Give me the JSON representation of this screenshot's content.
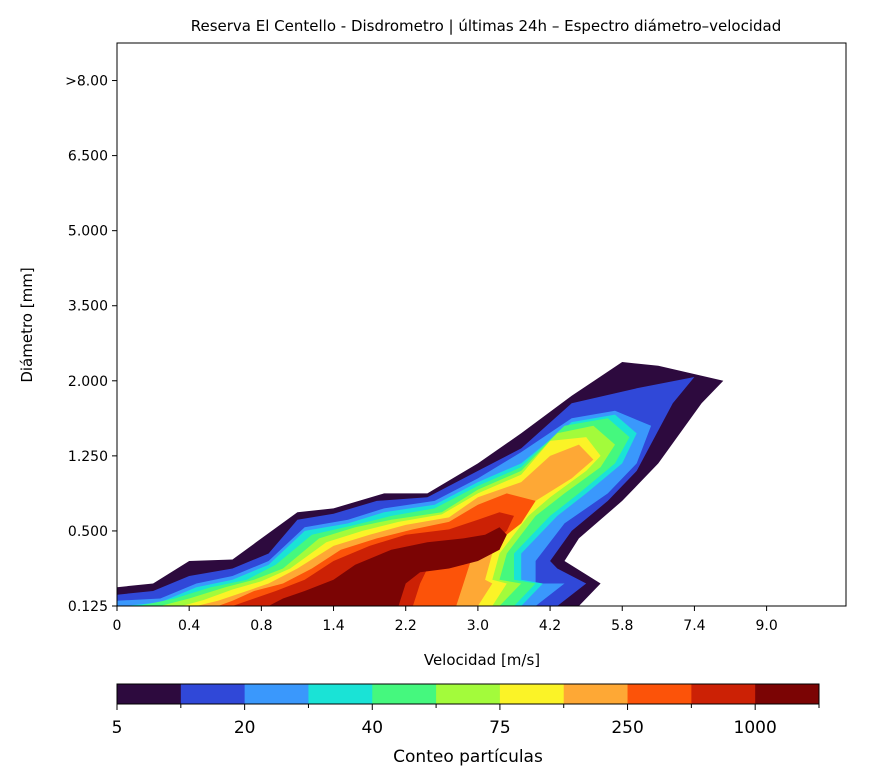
{
  "chart_data": {
    "type": "contour",
    "title": "Reserva El Centello - Disdrometro | últimas 24h – Espectro diámetro–velocidad",
    "xlabel": "Velocidad [m/s]",
    "ylabel": "Diámetro [mm]",
    "x_ticks": [
      "0",
      "0.4",
      "0.8",
      "1.4",
      "2.2",
      "3.0",
      "4.2",
      "5.8",
      "7.4",
      "9.0"
    ],
    "y_ticks": [
      "0.125",
      "0.500",
      "1.250",
      "2.000",
      "3.500",
      "5.000",
      "6.500",
      ">8.00"
    ],
    "x_range_bins": [
      0,
      10.1
    ],
    "y_range_bins": [
      0,
      7.5
    ],
    "grid": false,
    "colorbar": {
      "label": "Conteo partículas",
      "orientation": "horizontal",
      "position": "bottom",
      "tick_labels": [
        "5",
        "20",
        "40",
        "75",
        "250",
        "1000"
      ],
      "levels": 11,
      "colors": [
        "#2d0a3e",
        "#3048d8",
        "#3a98fc",
        "#1ae3d6",
        "#45f87e",
        "#a3fb3b",
        "#fbf327",
        "#fea835",
        "#fc5309",
        "#cc2105",
        "#7b0404"
      ]
    },
    "contour_levels": [
      {
        "level": 1,
        "color": "#2d0a3e",
        "polygon": [
          [
            0,
            0
          ],
          [
            0,
            0.25
          ],
          [
            0.5,
            0.3
          ],
          [
            1,
            0.6
          ],
          [
            1.6,
            0.62
          ],
          [
            2,
            0.9
          ],
          [
            2.5,
            1.25
          ],
          [
            3,
            1.3
          ],
          [
            3.7,
            1.5
          ],
          [
            4.3,
            1.5
          ],
          [
            5,
            1.9
          ],
          [
            5.6,
            2.3
          ],
          [
            6.3,
            2.8
          ],
          [
            7,
            3.25
          ],
          [
            7.5,
            3.2
          ],
          [
            8.4,
            3
          ],
          [
            8.1,
            2.7
          ],
          [
            7.5,
            1.9
          ],
          [
            7,
            1.4
          ],
          [
            6.4,
            0.9
          ],
          [
            6.2,
            0.6
          ],
          [
            6.7,
            0.3
          ],
          [
            6.4,
            0
          ]
        ]
      },
      {
        "level": 2,
        "color": "#3048d8",
        "polygon": [
          [
            0,
            0
          ],
          [
            0,
            0.15
          ],
          [
            0.5,
            0.2
          ],
          [
            1,
            0.4
          ],
          [
            1.6,
            0.5
          ],
          [
            2.1,
            0.7
          ],
          [
            2.5,
            1.15
          ],
          [
            3,
            1.23
          ],
          [
            3.6,
            1.4
          ],
          [
            4.3,
            1.45
          ],
          [
            5,
            1.8
          ],
          [
            5.6,
            2.1
          ],
          [
            6.3,
            2.7
          ],
          [
            7.2,
            2.9
          ],
          [
            8,
            3.05
          ],
          [
            7.7,
            2.7
          ],
          [
            7.2,
            1.8
          ],
          [
            6.8,
            1.4
          ],
          [
            6.3,
            1
          ],
          [
            6,
            0.6
          ],
          [
            6.1,
            0.5
          ],
          [
            6.5,
            0.3
          ],
          [
            6.1,
            0
          ]
        ]
      },
      {
        "level": 3,
        "color": "#3a98fc",
        "polygon": [
          [
            0,
            0
          ],
          [
            0,
            0.07
          ],
          [
            0.6,
            0.1
          ],
          [
            1.1,
            0.3
          ],
          [
            1.6,
            0.4
          ],
          [
            2.1,
            0.6
          ],
          [
            2.6,
            1.05
          ],
          [
            3.2,
            1.15
          ],
          [
            3.7,
            1.3
          ],
          [
            4.4,
            1.4
          ],
          [
            5,
            1.7
          ],
          [
            5.6,
            2.05
          ],
          [
            6.3,
            2.5
          ],
          [
            6.9,
            2.6
          ],
          [
            7.4,
            2.4
          ],
          [
            7.2,
            1.9
          ],
          [
            6.8,
            1.5
          ],
          [
            6.2,
            1.1
          ],
          [
            5.8,
            0.6
          ],
          [
            5.8,
            0.3
          ],
          [
            6.2,
            0.3
          ],
          [
            5.8,
            0
          ]
        ]
      },
      {
        "level": 4,
        "color": "#1ae3d6",
        "polygon": [
          [
            0.1,
            0
          ],
          [
            0.6,
            0.05
          ],
          [
            1.1,
            0.25
          ],
          [
            1.6,
            0.35
          ],
          [
            2.1,
            0.55
          ],
          [
            2.6,
            1.0
          ],
          [
            3.2,
            1.1
          ],
          [
            3.7,
            1.25
          ],
          [
            4.4,
            1.35
          ],
          [
            5,
            1.65
          ],
          [
            5.6,
            1.9
          ],
          [
            6.3,
            2.45
          ],
          [
            6.9,
            2.55
          ],
          [
            7.2,
            2.3
          ],
          [
            7,
            1.9
          ],
          [
            6.5,
            1.5
          ],
          [
            6.1,
            1.2
          ],
          [
            5.6,
            0.7
          ],
          [
            5.6,
            0.35
          ],
          [
            5.9,
            0.3
          ],
          [
            5.6,
            0
          ]
        ]
      },
      {
        "level": 5,
        "color": "#45f87e",
        "polygon": [
          [
            0.3,
            0
          ],
          [
            0.8,
            0.1
          ],
          [
            1.3,
            0.25
          ],
          [
            1.8,
            0.35
          ],
          [
            2.2,
            0.55
          ],
          [
            2.7,
            0.95
          ],
          [
            3.3,
            1.08
          ],
          [
            3.8,
            1.2
          ],
          [
            4.4,
            1.3
          ],
          [
            5,
            1.6
          ],
          [
            5.6,
            1.85
          ],
          [
            6.2,
            2.4
          ],
          [
            6.8,
            2.5
          ],
          [
            7.1,
            2.25
          ],
          [
            6.9,
            1.9
          ],
          [
            6.4,
            1.5
          ],
          [
            6,
            1.2
          ],
          [
            5.5,
            0.7
          ],
          [
            5.5,
            0.35
          ],
          [
            5.8,
            0.3
          ],
          [
            5.5,
            0
          ]
        ]
      },
      {
        "level": 6,
        "color": "#a3fb3b",
        "polygon": [
          [
            0.6,
            0
          ],
          [
            1,
            0.1
          ],
          [
            1.5,
            0.25
          ],
          [
            1.9,
            0.35
          ],
          [
            2.3,
            0.5
          ],
          [
            2.8,
            0.9
          ],
          [
            3.3,
            1.05
          ],
          [
            3.8,
            1.15
          ],
          [
            4.5,
            1.25
          ],
          [
            5,
            1.55
          ],
          [
            5.6,
            1.8
          ],
          [
            6.1,
            2.3
          ],
          [
            6.6,
            2.4
          ],
          [
            6.9,
            2.15
          ],
          [
            6.7,
            1.85
          ],
          [
            6.2,
            1.5
          ],
          [
            5.8,
            1.2
          ],
          [
            5.4,
            0.7
          ],
          [
            5.3,
            0.35
          ],
          [
            5.6,
            0.3
          ],
          [
            5.3,
            0
          ]
        ]
      },
      {
        "level": 7,
        "color": "#fbf327",
        "polygon": [
          [
            0.9,
            0
          ],
          [
            1.2,
            0.08
          ],
          [
            1.6,
            0.22
          ],
          [
            2,
            0.33
          ],
          [
            2.4,
            0.5
          ],
          [
            2.9,
            0.85
          ],
          [
            3.4,
            1.0
          ],
          [
            3.9,
            1.12
          ],
          [
            4.5,
            1.22
          ],
          [
            5,
            1.5
          ],
          [
            5.6,
            1.75
          ],
          [
            6,
            2.2
          ],
          [
            6.5,
            2.25
          ],
          [
            6.7,
            2.0
          ],
          [
            6.5,
            1.8
          ],
          [
            6,
            1.45
          ],
          [
            5.7,
            1.2
          ],
          [
            5.3,
            0.7
          ],
          [
            5.2,
            0.35
          ],
          [
            5.4,
            0.3
          ],
          [
            5.2,
            0
          ]
        ]
      },
      {
        "level": 8,
        "color": "#fea835",
        "polygon": [
          [
            1.1,
            0
          ],
          [
            1.4,
            0.07
          ],
          [
            1.8,
            0.2
          ],
          [
            2.1,
            0.3
          ],
          [
            2.5,
            0.5
          ],
          [
            3.0,
            0.8
          ],
          [
            3.5,
            0.95
          ],
          [
            4,
            1.08
          ],
          [
            4.6,
            1.18
          ],
          [
            5,
            1.45
          ],
          [
            5.6,
            1.65
          ],
          [
            6,
            2.0
          ],
          [
            6.4,
            2.15
          ],
          [
            6.6,
            1.95
          ],
          [
            6.3,
            1.7
          ],
          [
            5.8,
            1.4
          ],
          [
            5.5,
            1.1
          ],
          [
            5.2,
            0.7
          ],
          [
            5.1,
            0.35
          ],
          [
            5.2,
            0.3
          ],
          [
            5.0,
            0
          ]
        ]
      },
      {
        "level": 9,
        "color": "#fc5309",
        "polygon": [
          [
            1.4,
            0
          ],
          [
            1.6,
            0.07
          ],
          [
            1.9,
            0.2
          ],
          [
            2.3,
            0.3
          ],
          [
            2.7,
            0.5
          ],
          [
            3.1,
            0.75
          ],
          [
            3.6,
            0.9
          ],
          [
            4.1,
            1.02
          ],
          [
            4.6,
            1.12
          ],
          [
            5.0,
            1.35
          ],
          [
            5.4,
            1.5
          ],
          [
            5.8,
            1.4
          ],
          [
            5.6,
            1.1
          ],
          [
            5.2,
            0.8
          ],
          [
            4.9,
            0.6
          ],
          [
            4.8,
            0.3
          ],
          [
            4.7,
            0
          ]
        ]
      },
      {
        "level": 10,
        "color": "#cc2105",
        "polygon": [
          [
            1.6,
            0
          ],
          [
            1.9,
            0.1
          ],
          [
            2.2,
            0.2
          ],
          [
            2.6,
            0.35
          ],
          [
            3,
            0.6
          ],
          [
            3.5,
            0.8
          ],
          [
            4,
            0.95
          ],
          [
            4.6,
            1.02
          ],
          [
            5,
            1.15
          ],
          [
            5.3,
            1.25
          ],
          [
            5.5,
            1.2
          ],
          [
            5.4,
            1.0
          ],
          [
            5.1,
            0.75
          ],
          [
            4.8,
            0.55
          ],
          [
            4.3,
            0.5
          ],
          [
            4.2,
            0.3
          ],
          [
            4.1,
            0
          ]
        ]
      },
      {
        "level": 11,
        "color": "#7b0404",
        "polygon": [
          [
            2.1,
            0
          ],
          [
            2.3,
            0.1
          ],
          [
            2.6,
            0.2
          ],
          [
            3,
            0.35
          ],
          [
            3.3,
            0.55
          ],
          [
            3.8,
            0.75
          ],
          [
            4.3,
            0.85
          ],
          [
            4.8,
            0.9
          ],
          [
            5.1,
            0.95
          ],
          [
            5.3,
            1.05
          ],
          [
            5.4,
            0.95
          ],
          [
            5.3,
            0.75
          ],
          [
            5,
            0.6
          ],
          [
            4.6,
            0.5
          ],
          [
            4.2,
            0.45
          ],
          [
            4.0,
            0.3
          ],
          [
            3.9,
            0
          ]
        ]
      }
    ]
  }
}
